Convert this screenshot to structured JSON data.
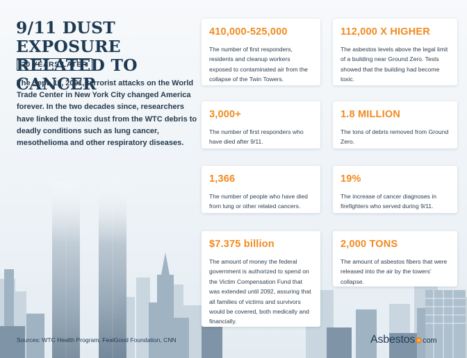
{
  "title": "9/11 DUST EXPOSURE RELATED TO CANCER",
  "badge": "20 YEARS LATER",
  "intro": "The Sept. 11, 2001, terrorist attacks on the World Trade Center in New York City changed America forever. In the two decades since, researchers have linked the toxic dust from the WTC debris to deadly conditions such as lung cancer, mesothelioma and other respiratory diseases.",
  "cards": [
    {
      "stat": "410,000-525,000",
      "desc": "The number of first responders, residents and cleanup workers exposed to contaminated air from the collapse of the Twin Towers."
    },
    {
      "stat": "112,000 X HIGHER",
      "desc": "The asbestos levels above the legal limit of a building near Ground Zero. Tests showed that the building had become toxic."
    },
    {
      "stat": "3,000+",
      "desc": "The number of first responders who have died after 9/11."
    },
    {
      "stat": "1.8 MILLION",
      "desc": "The tons of debris removed from Ground Zero."
    },
    {
      "stat": "1,366",
      "desc": "The number of people who have died from lung or other related cancers."
    },
    {
      "stat": "19%",
      "desc": "The increase of cancer diagnoses in firefighters who served during 9/11."
    },
    {
      "stat": "$7.375 billion",
      "desc": "The amount of money the federal government is authorized to spend on the Victim Compensation Fund that was extended until 2092, assuring that all families of victims and survivors would be covered, both medically and financially."
    },
    {
      "stat": "2,000 TONS",
      "desc": "The amount of asbestos fibers that were released into the air by the towers' collapse."
    }
  ],
  "sources": "Sources: WTC Health Program, FealGood Foundation, CNN",
  "logo": {
    "name": "Asbestos",
    "dot": "+",
    "suffix": "com"
  },
  "colors": {
    "accent": "#f18a1f",
    "navy": "#1e3a52",
    "tower": "#8ea3b4"
  }
}
